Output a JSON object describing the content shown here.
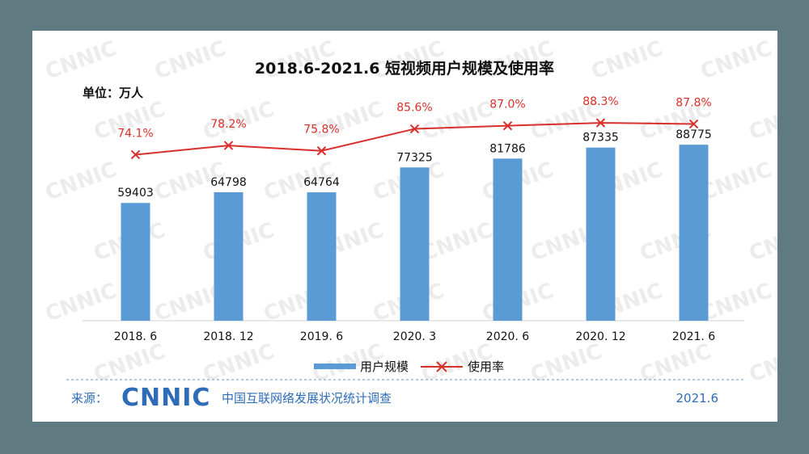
{
  "chart_data": {
    "type": "bar",
    "title": "2018.6-2021.6 短视频用户规模及使用率",
    "unit_label": "单位：万人",
    "categories": [
      "2018. 6",
      "2018. 12",
      "2019. 6",
      "2020. 3",
      "2020. 6",
      "2020. 12",
      "2021. 6"
    ],
    "series": [
      {
        "name": "用户规模",
        "kind": "bar",
        "color": "#5b9bd5",
        "values": [
          59403,
          64798,
          64764,
          77325,
          81786,
          87335,
          88775
        ]
      },
      {
        "name": "使用率",
        "kind": "line",
        "color": "#d9302b",
        "values": [
          74.1,
          78.2,
          75.8,
          85.6,
          87.0,
          88.3,
          87.8
        ],
        "labels": [
          "74.1%",
          "78.2%",
          "75.8%",
          "85.6%",
          "87.0%",
          "88.3%",
          "87.8%"
        ]
      }
    ],
    "bar_labels": [
      "59403",
      "64798",
      "64764",
      "77325",
      "81786",
      "87335",
      "88775"
    ],
    "ylim_bars": [
      0,
      130000
    ],
    "ylim_rate": [
      0,
      115
    ],
    "legend_position": "bottom",
    "grid": false
  },
  "footer": {
    "source_label": "来源：",
    "logo": "CNNIC",
    "org": "中国互联网络发展状况统计调查",
    "date": "2021.6"
  },
  "watermark": "CNNIC"
}
